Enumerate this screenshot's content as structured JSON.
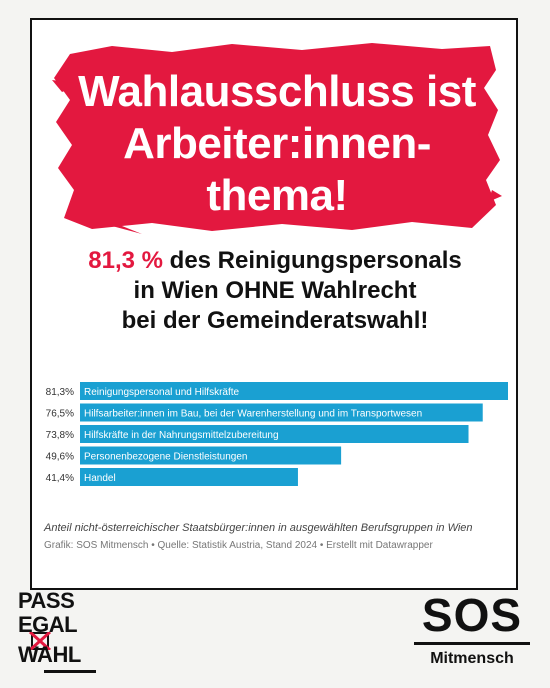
{
  "headline": {
    "line1": "Wahlausschluss ist",
    "line2": "Arbeiter:innen-",
    "line3": "thema!"
  },
  "subhead": {
    "highlight": "81,3 %",
    "line1_rest": " des Reinigungspersonals",
    "line2": "in Wien OHNE Wahlrecht",
    "line3": "bei der Gemeinderatswahl!"
  },
  "colors": {
    "accent_red": "#e3183f",
    "bar": "#1aa0d2",
    "text": "#111111"
  },
  "chart_data": {
    "type": "bar",
    "orientation": "horizontal",
    "categories": [
      "Reinigungspersonal und Hilfskräfte",
      "Hilfsarbeiter:innen im Bau, bei der Warenherstellung und im Transportwesen",
      "Hilfskräfte in der Nahrungsmittelzubereitung",
      "Personenbezogene Dienstleistungen",
      "Handel"
    ],
    "values": [
      81.3,
      76.5,
      73.8,
      49.6,
      41.4
    ],
    "value_labels": [
      "81,3%",
      "76,5%",
      "73,8%",
      "49,6%",
      "41,4%"
    ],
    "xlim": [
      0,
      81.3
    ],
    "grid": false
  },
  "note": "Anteil nicht-österreichischer Staatsbürger:innen in ausgewählten Berufsgruppen in Wien",
  "credit": "Grafik: SOS Mitmensch • Quelle: Statistik Austria, Stand 2024 • Erstellt mit Datawrapper",
  "logo_left": {
    "word1": "PASS",
    "word2": "EGAL",
    "word3": "WAHL"
  },
  "logo_right": {
    "big": "SOS",
    "small": "Mitmensch"
  }
}
